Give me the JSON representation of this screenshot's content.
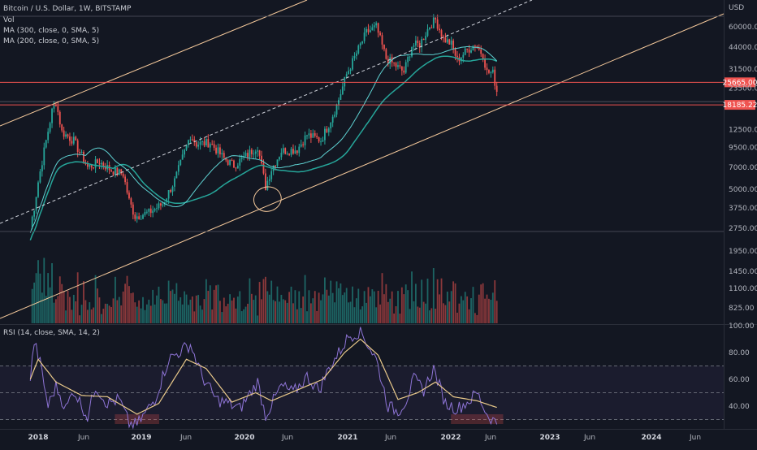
{
  "header": {
    "title": "Bitcoin / U.S. Dollar, 1W, BITSTAMP",
    "legend_lines": [
      "Vol",
      "MA (300, close, 0, SMA, 5)",
      "MA (200, close, 0, SMA, 5)"
    ],
    "rsi_label": "RSI (14, close, SMA, 14, 2)"
  },
  "colors": {
    "background": "#131722",
    "bull": "#26a69a",
    "bear": "#ef5350",
    "ma300": "#26a69a",
    "ma200": "#5fd3d3",
    "trend": "#f5c99b",
    "rsi": "#8e74d6",
    "rsi_ma": "#e9c98a",
    "hline": "#ef5350"
  },
  "chart_data": [
    {
      "type": "candlestick",
      "name": "price",
      "y_scale": "log",
      "currency": "USD",
      "ylim": [
        2500,
        80000
      ],
      "y_ticks": [
        "60000.00",
        "44000.00",
        "31500.00",
        "23500.00",
        "12500.00",
        "9500.00",
        "7000.00",
        "5000.00",
        "3750.00",
        "2750.00"
      ],
      "x_ticks": [
        "2018",
        "Jun",
        "2019",
        "Jun",
        "2020",
        "Jun",
        "2021",
        "Jun",
        "2022",
        "Jun",
        "2023",
        "Jun",
        "2024",
        "Jun"
      ],
      "price_tags": [
        {
          "label": "25665.00"
        },
        {
          "label": "18185.22"
        }
      ],
      "anchors": [
        [
          "2017-12-04",
          2800
        ],
        [
          "2017-12-18",
          3800
        ],
        [
          "2018-01-01",
          5600
        ],
        [
          "2018-01-22",
          9000
        ],
        [
          "2018-02-19",
          16500
        ],
        [
          "2018-03-05",
          19000
        ],
        [
          "2018-03-26",
          12000
        ],
        [
          "2018-05-07",
          10500
        ],
        [
          "2018-06-25",
          7000
        ],
        [
          "2018-08-06",
          7600
        ],
        [
          "2018-09-17",
          6700
        ],
        [
          "2018-10-29",
          6300
        ],
        [
          "2018-11-19",
          4200
        ],
        [
          "2018-12-10",
          3300
        ],
        [
          "2019-01-28",
          3500
        ],
        [
          "2019-03-18",
          4000
        ],
        [
          "2019-04-29",
          5700
        ],
        [
          "2019-06-24",
          11500
        ],
        [
          "2019-07-15",
          10000
        ],
        [
          "2019-09-02",
          10200
        ],
        [
          "2019-10-21",
          8000
        ],
        [
          "2019-11-25",
          7200
        ],
        [
          "2020-01-06",
          8300
        ],
        [
          "2020-02-17",
          9700
        ],
        [
          "2020-03-16",
          5200
        ],
        [
          "2020-04-06",
          6800
        ],
        [
          "2020-05-11",
          9000
        ],
        [
          "2020-07-06",
          9200
        ],
        [
          "2020-08-10",
          11500
        ],
        [
          "2020-09-28",
          10600
        ],
        [
          "2020-10-26",
          13500
        ],
        [
          "2020-11-23",
          18000
        ],
        [
          "2020-12-28",
          29000
        ],
        [
          "2021-02-01",
          40000
        ],
        [
          "2021-03-08",
          55000
        ],
        [
          "2021-04-12",
          60000
        ],
        [
          "2021-05-17",
          37000
        ],
        [
          "2021-06-21",
          33000
        ],
        [
          "2021-07-19",
          30000
        ],
        [
          "2021-08-16",
          45000
        ],
        [
          "2021-09-13",
          46000
        ],
        [
          "2021-10-18",
          61000
        ],
        [
          "2021-11-08",
          67000
        ],
        [
          "2021-12-06",
          50000
        ],
        [
          "2022-01-03",
          46000
        ],
        [
          "2022-01-24",
          36000
        ],
        [
          "2022-02-28",
          42000
        ],
        [
          "2022-03-28",
          46000
        ],
        [
          "2022-04-25",
          39000
        ],
        [
          "2022-05-09",
          30000
        ],
        [
          "2022-05-30",
          29500
        ],
        [
          "2022-06-13",
          22500
        ]
      ],
      "volume": {
        "y_ticks": [
          "1950.00",
          "1450.00",
          "1100.00",
          "825.00"
        ]
      },
      "horizontal_lines": [
        25665,
        18185.22
      ],
      "note": "Parallel channel (solid upper, dashed mid, solid lower trendline) and ellipse annotation at the March 2020 low"
    },
    {
      "type": "line",
      "name": "RSI",
      "ylim": [
        25,
        105
      ],
      "y_ticks": [
        "100.00",
        "80.00",
        "60.00",
        "40.00"
      ],
      "bands": [
        70,
        50,
        30
      ],
      "anchors": [
        [
          "2017-12-04",
          60
        ],
        [
          "2017-12-18",
          88
        ],
        [
          "2018-01-08",
          72
        ],
        [
          "2018-02-05",
          40
        ],
        [
          "2018-03-05",
          55
        ],
        [
          "2018-04-09",
          38
        ],
        [
          "2018-05-07",
          52
        ],
        [
          "2018-06-25",
          32
        ],
        [
          "2018-07-23",
          55
        ],
        [
          "2018-09-03",
          42
        ],
        [
          "2018-10-15",
          45
        ],
        [
          "2018-11-19",
          27
        ],
        [
          "2018-12-17",
          26
        ],
        [
          "2019-02-18",
          45
        ],
        [
          "2019-04-08",
          75
        ],
        [
          "2019-06-24",
          86
        ],
        [
          "2019-08-05",
          62
        ],
        [
          "2019-09-23",
          45
        ],
        [
          "2019-11-04",
          42
        ],
        [
          "2019-12-16",
          38
        ],
        [
          "2020-02-17",
          58
        ],
        [
          "2020-03-16",
          33
        ],
        [
          "2020-05-11",
          55
        ],
        [
          "2020-06-22",
          50
        ],
        [
          "2020-08-10",
          62
        ],
        [
          "2020-09-21",
          52
        ],
        [
          "2020-10-26",
          68
        ],
        [
          "2020-12-07",
          82
        ],
        [
          "2021-01-04",
          92
        ],
        [
          "2021-02-15",
          96
        ],
        [
          "2021-04-12",
          75
        ],
        [
          "2021-05-24",
          40
        ],
        [
          "2021-06-28",
          36
        ],
        [
          "2021-07-26",
          44
        ],
        [
          "2021-08-23",
          60
        ],
        [
          "2021-09-27",
          52
        ],
        [
          "2021-11-01",
          68
        ],
        [
          "2021-12-13",
          42
        ],
        [
          "2022-01-24",
          38
        ],
        [
          "2022-03-07",
          44
        ],
        [
          "2022-04-04",
          50
        ],
        [
          "2022-05-09",
          34
        ],
        [
          "2022-06-13",
          27
        ]
      ],
      "ma_anchors": [
        [
          "2017-12-04",
          60
        ],
        [
          "2018-01-01",
          75
        ],
        [
          "2018-03-05",
          58
        ],
        [
          "2018-06-04",
          48
        ],
        [
          "2018-09-03",
          47
        ],
        [
          "2018-12-17",
          34
        ],
        [
          "2019-03-04",
          42
        ],
        [
          "2019-06-10",
          75
        ],
        [
          "2019-08-19",
          68
        ],
        [
          "2019-11-18",
          43
        ],
        [
          "2020-02-10",
          50
        ],
        [
          "2020-04-06",
          44
        ],
        [
          "2020-07-06",
          52
        ],
        [
          "2020-10-05",
          60
        ],
        [
          "2020-12-21",
          80
        ],
        [
          "2021-02-15",
          90
        ],
        [
          "2021-04-19",
          78
        ],
        [
          "2021-06-28",
          45
        ],
        [
          "2021-09-06",
          50
        ],
        [
          "2021-11-08",
          58
        ],
        [
          "2022-01-10",
          47
        ],
        [
          "2022-04-04",
          44
        ],
        [
          "2022-06-13",
          39
        ]
      ],
      "highlight_boxes": [
        {
          "from": "2018-10-01",
          "to": "2019-03-04",
          "level": 30
        },
        {
          "from": "2022-01-03",
          "to": "2022-07-04",
          "level": 30
        }
      ]
    }
  ]
}
